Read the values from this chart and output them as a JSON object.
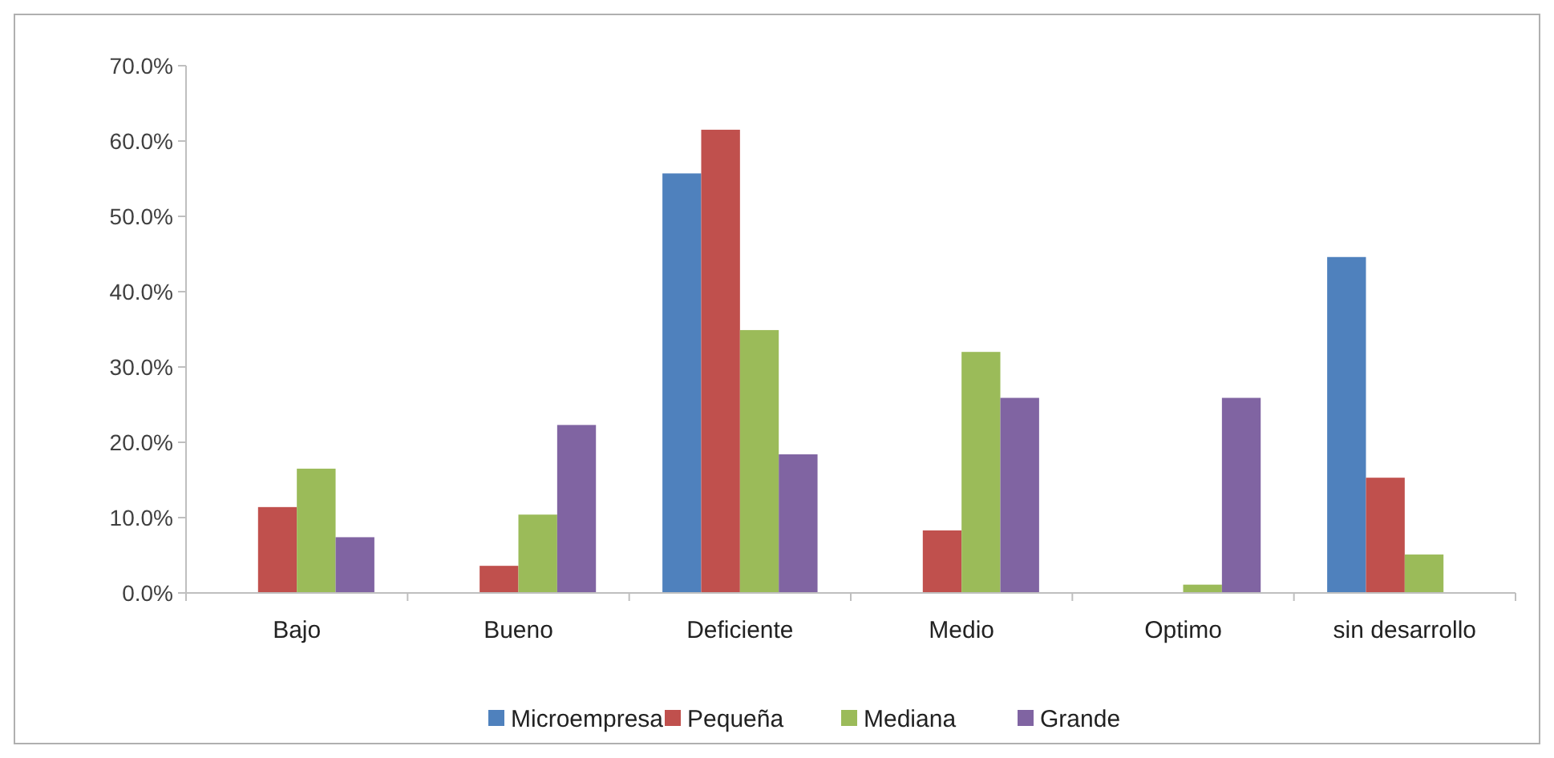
{
  "chart_data": {
    "type": "bar",
    "categories": [
      "Bajo",
      "Bueno",
      "Deficiente",
      "Medio",
      "Optimo",
      "sin desarrollo"
    ],
    "series": [
      {
        "name": "Microempresa",
        "color": "#4f81bd",
        "values": [
          0,
          0,
          55.7,
          0,
          0,
          44.6
        ]
      },
      {
        "name": "Pequeña",
        "color": "#c0504d",
        "values": [
          11.4,
          3.6,
          61.5,
          8.3,
          0,
          15.3
        ]
      },
      {
        "name": "Mediana",
        "color": "#9bbb59",
        "values": [
          16.5,
          10.4,
          34.9,
          32.0,
          1.1,
          5.1
        ]
      },
      {
        "name": "Grande",
        "color": "#8064a2",
        "values": [
          7.4,
          22.3,
          18.4,
          25.9,
          25.9,
          0
        ]
      }
    ],
    "ylim": [
      0,
      70
    ],
    "yticks": [
      {
        "value": 0,
        "label": "0.0%"
      },
      {
        "value": 10,
        "label": "10.0%"
      },
      {
        "value": 20,
        "label": "20.0%"
      },
      {
        "value": 30,
        "label": "30.0%"
      },
      {
        "value": 40,
        "label": "40.0%"
      },
      {
        "value": 50,
        "label": "50.0%"
      },
      {
        "value": 60,
        "label": "60.0%"
      },
      {
        "value": 70,
        "label": "70.0%"
      }
    ],
    "grid": false,
    "legend": "bottom"
  }
}
